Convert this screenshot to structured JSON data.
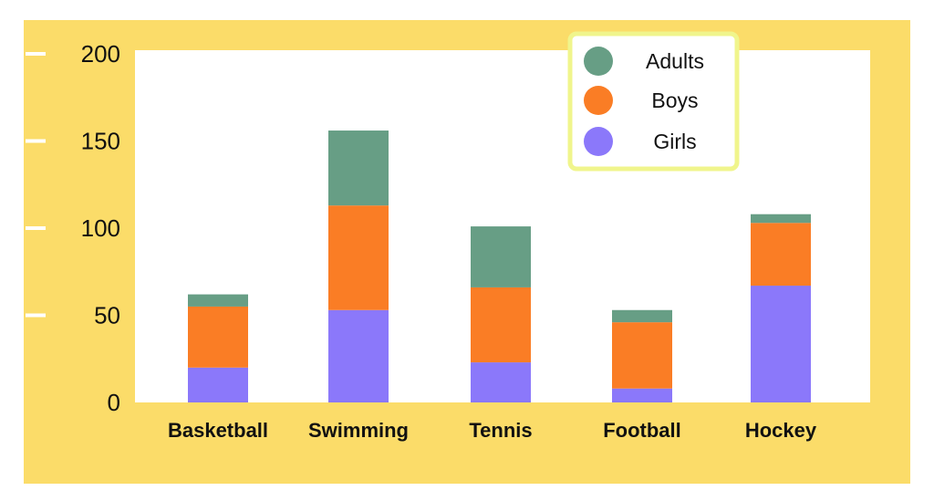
{
  "chart_data": {
    "type": "bar",
    "stacked": true,
    "categories": [
      "Basketball",
      "Swimming",
      "Tennis",
      "Football",
      "Hockey"
    ],
    "series": [
      {
        "name": "Girls",
        "color": "#8b78fa",
        "values": [
          20,
          53,
          23,
          8,
          67
        ]
      },
      {
        "name": "Boys",
        "color": "#fa7d25",
        "values": [
          35,
          60,
          43,
          38,
          36
        ]
      },
      {
        "name": "Adults",
        "color": "#679e85",
        "values": [
          7,
          43,
          35,
          7,
          5
        ]
      }
    ],
    "yticks": [
      "0",
      "50",
      "100",
      "150",
      "200"
    ],
    "ylim": [
      0,
      200
    ],
    "legend": {
      "position": "top-right",
      "order": [
        "Adults",
        "Boys",
        "Girls"
      ]
    },
    "colors": {
      "background": "#fbdc69",
      "plot_area": "#ffffff",
      "legend_border": "#f0f58c"
    }
  }
}
